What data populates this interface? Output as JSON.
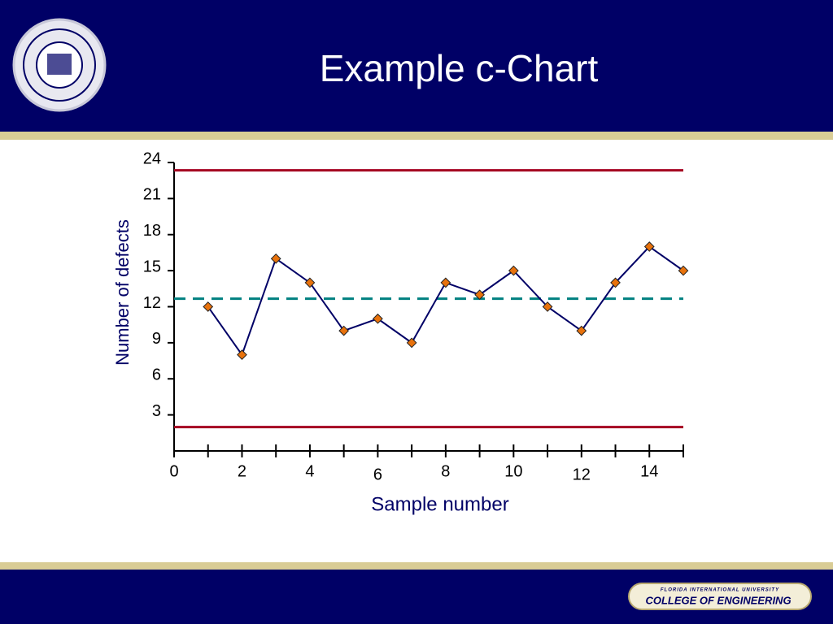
{
  "slide": {
    "footer_university": "FLORIDA INTERNATIONAL UNIVERSITY",
    "footer_college": "COLLEGE OF ENGINEERING"
  },
  "chart_data": {
    "type": "line",
    "title": "Example c-Chart",
    "x_label": "Sample number",
    "y_label": "Number of defects",
    "x": [
      1,
      2,
      3,
      4,
      5,
      6,
      7,
      8,
      9,
      10,
      11,
      12,
      13,
      14,
      15
    ],
    "series": [
      {
        "color": "#000066",
        "marker_color": "#e8720c",
        "values": [
          12,
          8,
          16,
          14,
          10,
          11,
          9,
          14,
          13,
          15,
          12,
          10,
          14,
          17,
          15
        ]
      }
    ],
    "upper_control_limit": 23.35,
    "center_line": 12.67,
    "lower_control_limit": 1.99,
    "limit_color": "#a50021",
    "center_color": "#008080",
    "xlim": [
      0,
      15
    ],
    "xticks": [
      0,
      2,
      4,
      6,
      8,
      10,
      12,
      14
    ],
    "x_minor_ticks": [
      1,
      3,
      5,
      7,
      9,
      11,
      13,
      15
    ],
    "ylim": [
      0,
      24
    ],
    "yticks": [
      3,
      6,
      9,
      12,
      15,
      18,
      21,
      24
    ]
  }
}
